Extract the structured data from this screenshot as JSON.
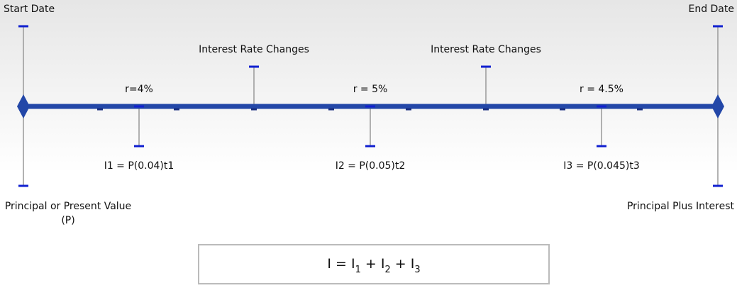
{
  "start_label": "Start Date",
  "end_label": "End Date",
  "start_bottom": [
    "Principal or Present Value",
    "(P)"
  ],
  "end_bottom": "Principal Plus Interest",
  "rate_changes": [
    "Interest Rate Changes",
    "Interest Rate Changes"
  ],
  "periods": [
    {
      "rate": "r=4%",
      "interest": "I1 = P(0.04)t1"
    },
    {
      "rate": "r = 5%",
      "interest": "I2 = P(0.05)t2"
    },
    {
      "rate": "r = 4.5%",
      "interest": "I3 = P(0.045)t3"
    }
  ],
  "formula": [
    {
      "text": "I = I",
      "sub": "1"
    },
    {
      "text": " + I",
      "sub": "2"
    },
    {
      "text": " + I",
      "sub": "3"
    }
  ]
}
